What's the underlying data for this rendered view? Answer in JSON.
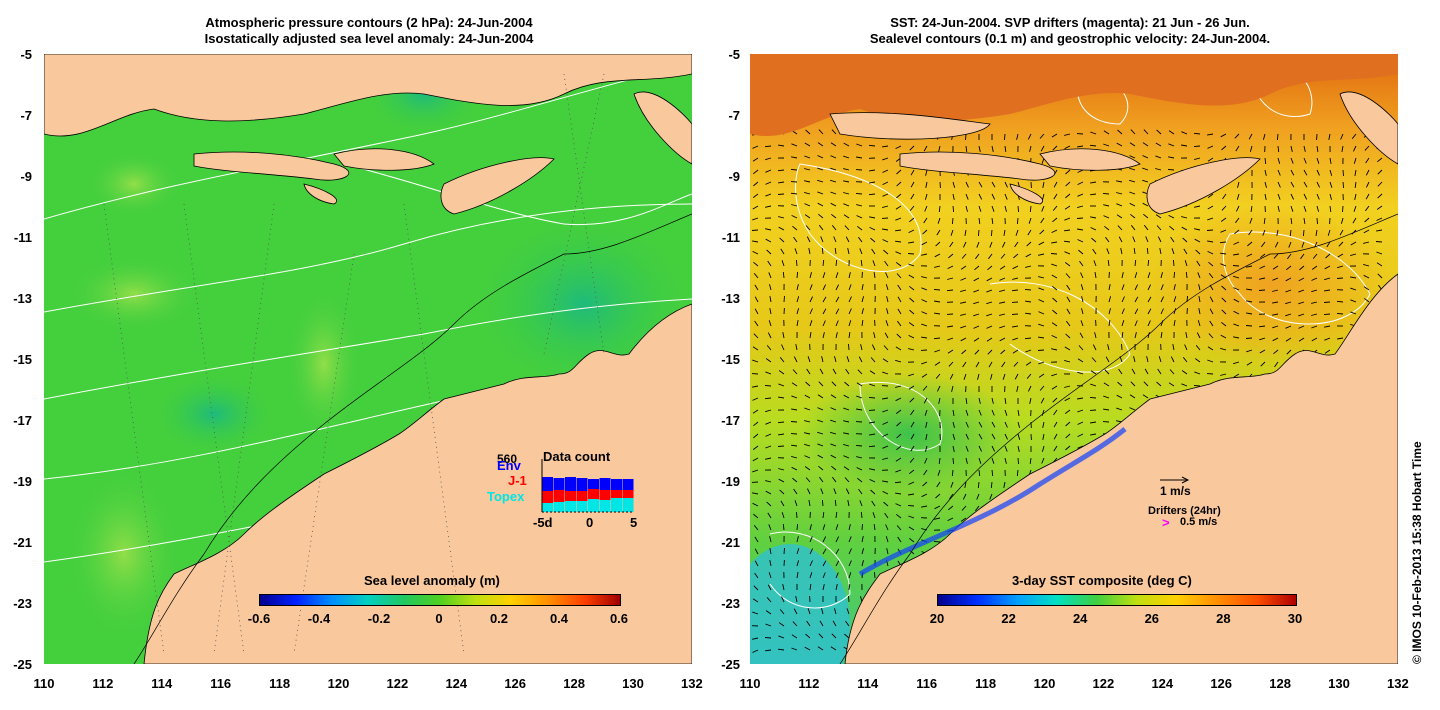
{
  "left_panel": {
    "title_line1": "Atmospheric pressure contours (2 hPa): 24-Jun-2004",
    "title_line2": "Isostatically adjusted sea level anomaly: 24-Jun-2004",
    "colorbar_title": "Sea level anomaly (m)",
    "colorbar_ticks": [
      "-0.6",
      "-0.4",
      "-0.2",
      "0",
      "0.2",
      "0.4",
      "0.6"
    ],
    "inset": {
      "title": "Data count",
      "series": [
        "Env",
        "J-1",
        "Topex"
      ],
      "extra_label": "560",
      "x_ticks": [
        "-5d",
        "0",
        "5"
      ]
    }
  },
  "right_panel": {
    "title_line1": "SST: 24-Jun-2004. SVP drifters (magenta): 21 Jun - 26 Jun.",
    "title_line2": "Sealevel contours (0.1 m) and geostrophic velocity: 24-Jun-2004.",
    "colorbar_title": "3-day SST composite (deg C)",
    "colorbar_ticks": [
      "20",
      "22",
      "24",
      "26",
      "28",
      "30"
    ],
    "legend_velocity": "1 m/s",
    "legend_drifters": "Drifters (24hr)",
    "legend_drifter_speed": "0.5 m/s",
    "legend_drifter_marker": ">"
  },
  "y_ticks": [
    "-5",
    "-7",
    "-9",
    "-11",
    "-13",
    "-15",
    "-17",
    "-19",
    "-21",
    "-23",
    "-25"
  ],
  "x_ticks": [
    "110",
    "112",
    "114",
    "116",
    "118",
    "120",
    "122",
    "124",
    "126",
    "128",
    "130",
    "132"
  ],
  "credit": "© IMOS 10-Feb-2013 15:38 Hobart Time",
  "colors": {
    "land": "#f9c89c",
    "ocean_left": "#3fcf3f",
    "ocean_right": "#e8c21a",
    "drifter": "#ff00ff",
    "env": "#0000ff",
    "j1": "#ff0000",
    "topex": "#00e5e5"
  }
}
